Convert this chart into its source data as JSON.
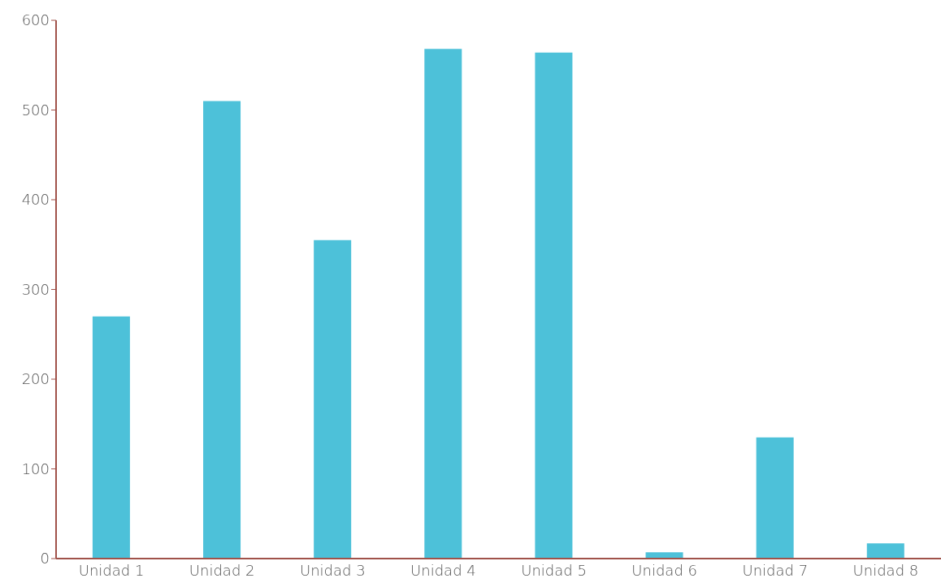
{
  "chart_data": {
    "type": "bar",
    "categories": [
      "Unidad 1",
      "Unidad 2",
      "Unidad 3",
      "Unidad 4",
      "Unidad 5",
      "Unidad 6",
      "Unidad 7",
      "Unidad 8"
    ],
    "values": [
      270,
      510,
      355,
      568,
      564,
      7,
      135,
      17
    ],
    "color": "#4dc1d9",
    "ylim": [
      0,
      600
    ],
    "yticks": [
      0,
      100,
      200,
      300,
      400,
      500,
      600
    ],
    "grid": false,
    "legend": false
  }
}
